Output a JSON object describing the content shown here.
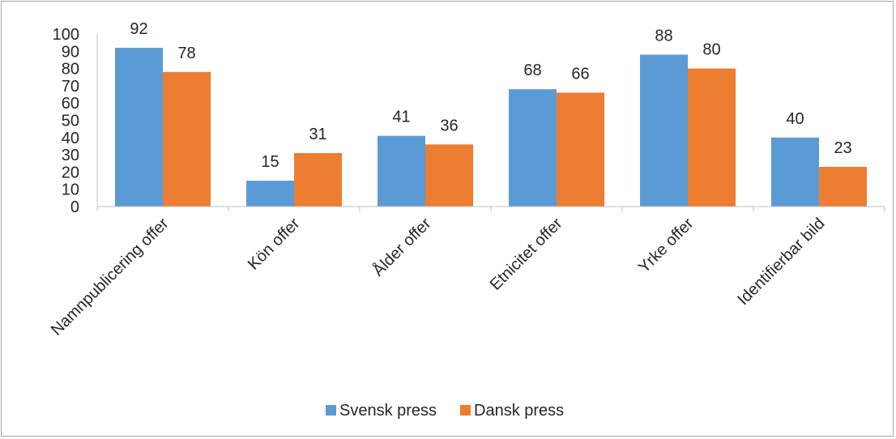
{
  "chart_data": {
    "type": "bar",
    "title": "",
    "xlabel": "",
    "ylabel": "",
    "ylim": [
      0,
      100
    ],
    "yticks": [
      0,
      10,
      20,
      30,
      40,
      50,
      60,
      70,
      80,
      90,
      100
    ],
    "grid": false,
    "legend_position": "bottom",
    "categories": [
      "Namnpublicering offer",
      "Kön offer",
      "Ålder offer",
      "Etnicitet offer",
      "Yrke offer",
      "Identifierbar bild"
    ],
    "series": [
      {
        "name": "Svensk press",
        "color": "#5b9bd5",
        "values": [
          92,
          15,
          41,
          68,
          88,
          40
        ]
      },
      {
        "name": "Dansk press",
        "color": "#ed7d31",
        "values": [
          78,
          31,
          36,
          66,
          80,
          23
        ]
      }
    ]
  }
}
